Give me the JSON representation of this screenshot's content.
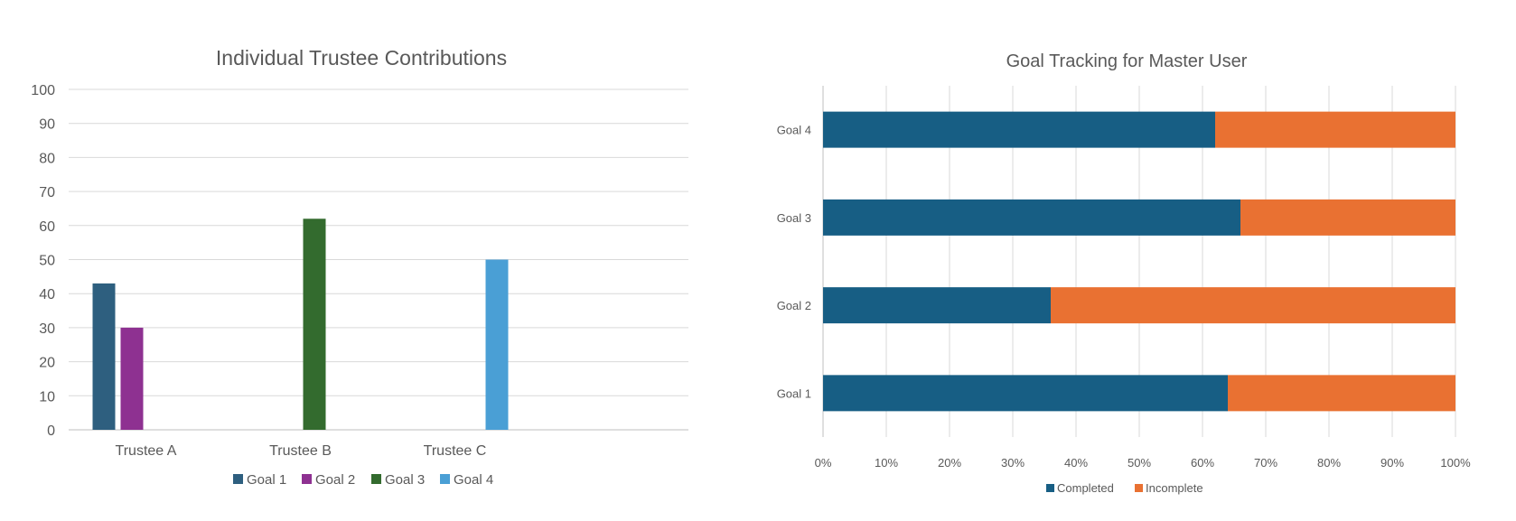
{
  "chart_data": [
    {
      "type": "bar",
      "title": "Individual Trustee Contributions",
      "categories": [
        "Trustee A",
        "Trustee B",
        "Trustee C"
      ],
      "series": [
        {
          "name": "Goal 1",
          "color": "#2E5F7F",
          "values": [
            43,
            null,
            null
          ]
        },
        {
          "name": "Goal 2",
          "color": "#8E3191",
          "values": [
            30,
            null,
            null
          ]
        },
        {
          "name": "Goal 3",
          "color": "#336B2E",
          "values": [
            null,
            62,
            null
          ]
        },
        {
          "name": "Goal 4",
          "color": "#4A9FD5",
          "values": [
            null,
            null,
            50
          ]
        }
      ],
      "ylim": [
        0,
        100
      ],
      "yticks": [
        "0",
        "10",
        "20",
        "30",
        "40",
        "50",
        "60",
        "70",
        "80",
        "90",
        "100"
      ],
      "grid": true,
      "legend": "bottom"
    },
    {
      "type": "bar",
      "orientation": "horizontal",
      "stacked": "percent",
      "title": "Goal Tracking for Master User",
      "categories": [
        "Goal 1",
        "Goal 2",
        "Goal 3",
        "Goal 4"
      ],
      "series": [
        {
          "name": "Completed",
          "color": "#175E84",
          "values": [
            64,
            36,
            66,
            62
          ]
        },
        {
          "name": "Incomplete",
          "color": "#E97132",
          "values": [
            36,
            64,
            34,
            38
          ]
        }
      ],
      "xlim": [
        0,
        100
      ],
      "xticks": [
        "0%",
        "10%",
        "20%",
        "30%",
        "40%",
        "50%",
        "60%",
        "70%",
        "80%",
        "90%",
        "100%"
      ],
      "grid": true,
      "legend": "bottom"
    }
  ]
}
